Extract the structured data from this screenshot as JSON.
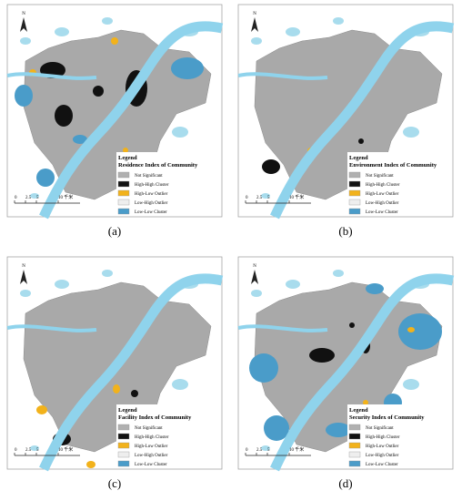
{
  "panels": [
    {
      "caption": "(a)",
      "north": "N",
      "legend": {
        "heading": "Legend",
        "title": "Residence Index of Community",
        "items": [
          {
            "label": "Not Significant",
            "color": "#b0b0b0"
          },
          {
            "label": "High-High Cluster",
            "color": "#111111"
          },
          {
            "label": "High-Low Outlier",
            "color": "#f2b21b"
          },
          {
            "label": "Low-High Outlier",
            "color": "#eeeeee"
          },
          {
            "label": "Low-Low Cluster",
            "color": "#4a9cc9"
          }
        ]
      },
      "scale": [
        "0",
        "2.5",
        "5",
        "10 千米"
      ]
    },
    {
      "caption": "(b)",
      "north": "N",
      "legend": {
        "heading": "Legend",
        "title": "Environment Index of Community",
        "items": [
          {
            "label": "Not Significant",
            "color": "#b0b0b0"
          },
          {
            "label": "High-High Cluster",
            "color": "#111111"
          },
          {
            "label": "High-Low Outlier",
            "color": "#f2b21b"
          },
          {
            "label": "Low-High Outlier",
            "color": "#eeeeee"
          },
          {
            "label": "Low-Low Cluster",
            "color": "#4a9cc9"
          }
        ]
      },
      "scale": [
        "0",
        "2.5",
        "5",
        "10 千米"
      ]
    },
    {
      "caption": "(c)",
      "north": "N",
      "legend": {
        "heading": "Legend",
        "title": "Facility Index of Community",
        "items": [
          {
            "label": "Not Significant",
            "color": "#b0b0b0"
          },
          {
            "label": "High-High Cluster",
            "color": "#111111"
          },
          {
            "label": "High-Low Outlier",
            "color": "#f2b21b"
          },
          {
            "label": "Low-High Outlier",
            "color": "#eeeeee"
          },
          {
            "label": "Low-Low Cluster",
            "color": "#4a9cc9"
          }
        ]
      },
      "scale": [
        "0",
        "2.5",
        "5",
        "10 千米"
      ]
    },
    {
      "caption": "(d)",
      "north": "N",
      "legend": {
        "heading": "Legend",
        "title": "Security Index of Community",
        "items": [
          {
            "label": "Not Significant",
            "color": "#b0b0b0"
          },
          {
            "label": "High-High Cluster",
            "color": "#111111"
          },
          {
            "label": "High-Low Outlier",
            "color": "#f2b21b"
          },
          {
            "label": "Low-High Outlier",
            "color": "#eeeeee"
          },
          {
            "label": "Low-Low Cluster",
            "color": "#4a9cc9"
          }
        ]
      },
      "scale": [
        "0",
        "2.5",
        "5",
        "10 千米"
      ]
    }
  ]
}
